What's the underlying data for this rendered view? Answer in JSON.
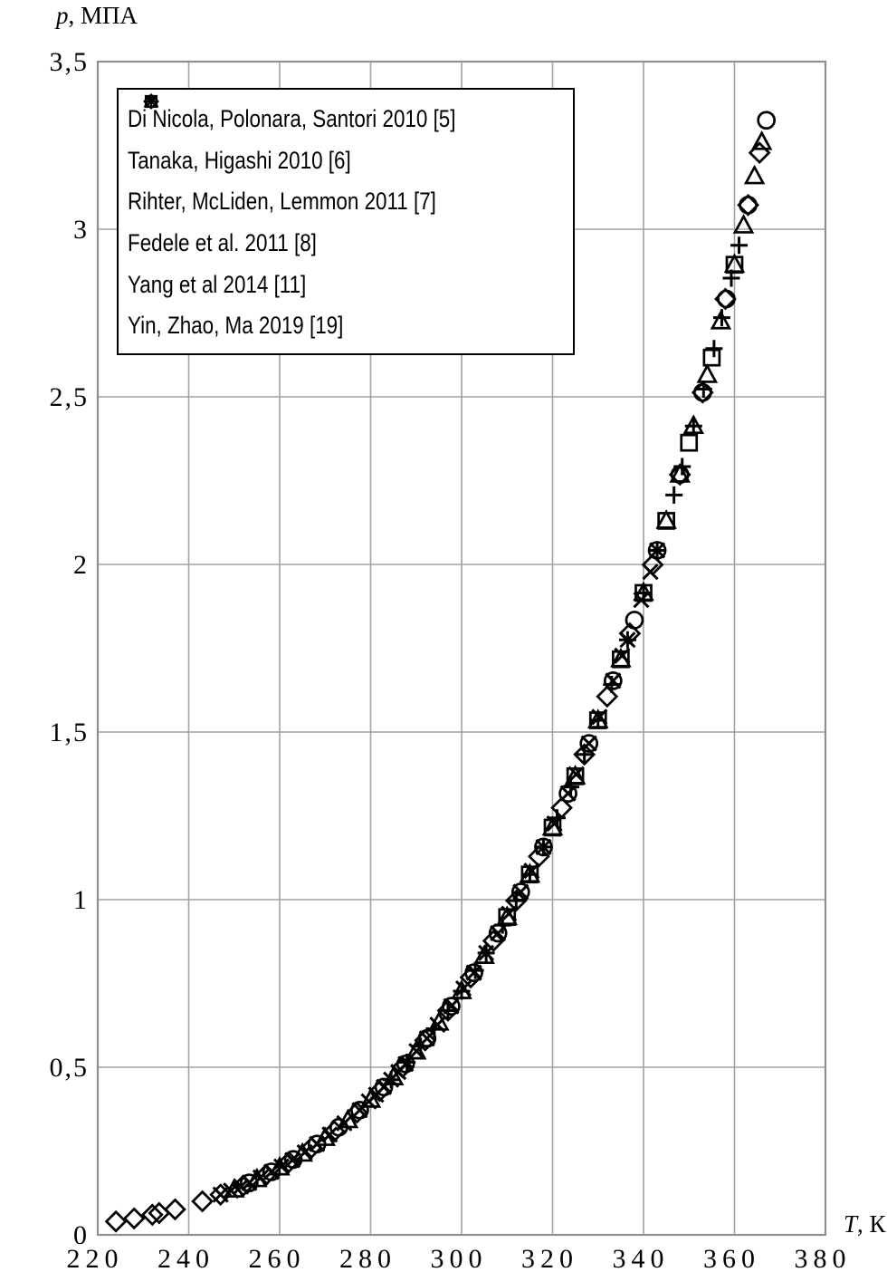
{
  "colors": {
    "marker": "#000000",
    "grid": "#a2a2a2",
    "frame": "#8f8f8f",
    "background": "#ffffff",
    "legend_border": "#000000"
  },
  "chart_data": {
    "type": "scatter",
    "title": "",
    "ylabel_var": "p",
    "ylabel_unit": ", МПА",
    "xlabel_var": "T",
    "xlabel_unit": ", К",
    "xlim": [
      220,
      380
    ],
    "ylim": [
      0,
      3.5
    ],
    "grid": true,
    "legend_position": "top-left",
    "x_ticks": {
      "values": [
        220,
        240,
        260,
        280,
        300,
        320,
        340,
        360,
        380
      ],
      "labels": [
        "220",
        "240",
        "260",
        "280",
        "300",
        "320",
        "340",
        "360",
        "380"
      ]
    },
    "y_ticks": {
      "values": [
        0,
        0.5,
        1,
        1.5,
        2,
        2.5,
        3,
        3.5
      ],
      "labels": [
        "0",
        "0,5",
        "1",
        "1,5",
        "2",
        "2,5",
        "3",
        "3,5"
      ]
    },
    "series": [
      {
        "id": "di-nicola",
        "label": "Di Nicola, Polonara, Santori 2010 [5]",
        "marker": "diamond",
        "T": [
          224,
          228,
          232,
          233.5,
          237,
          243,
          247,
          252,
          257,
          262,
          267,
          272,
          277,
          282,
          287,
          292,
          297,
          302,
          307,
          312,
          317,
          322,
          327,
          332,
          337,
          342,
          348,
          353,
          358,
          363,
          365.5
        ],
        "p": [
          0.04,
          0.049,
          0.06,
          0.065,
          0.076,
          0.1,
          0.12,
          0.147,
          0.179,
          0.217,
          0.26,
          0.309,
          0.365,
          0.429,
          0.5,
          0.58,
          0.669,
          0.768,
          0.877,
          0.997,
          1.129,
          1.274,
          1.433,
          1.606,
          1.794,
          1.999,
          2.268,
          2.513,
          2.792,
          3.072,
          3.228
        ]
      },
      {
        "id": "tanaka",
        "label": "Tanaka, Higashi 2010 [6]",
        "marker": "square",
        "T": [
          310,
          315,
          320,
          325,
          330,
          335,
          340,
          345,
          350,
          355,
          360
        ],
        "p": [
          0.948,
          1.075,
          1.215,
          1.368,
          1.535,
          1.717,
          1.915,
          2.13,
          2.363,
          2.617,
          2.894
        ]
      },
      {
        "id": "rihter",
        "label": "Rihter, McLiden, Lemmon 2011 [7]",
        "marker": "triangle",
        "T": [
          250,
          255,
          260,
          265,
          270,
          275,
          280,
          285,
          290,
          295,
          300,
          305,
          310,
          315,
          320,
          325,
          330,
          335,
          340,
          345,
          348,
          351,
          354,
          357,
          360,
          362,
          364.4,
          366
        ],
        "p": [
          0.135,
          0.166,
          0.201,
          0.242,
          0.289,
          0.342,
          0.403,
          0.47,
          0.547,
          0.633,
          0.727,
          0.832,
          0.948,
          1.075,
          1.215,
          1.368,
          1.535,
          1.717,
          1.915,
          2.13,
          2.268,
          2.413,
          2.565,
          2.725,
          2.894,
          3.011,
          3.158,
          3.26
        ]
      },
      {
        "id": "fedele",
        "label": "Fedele et al. 2011 [8]",
        "marker": "x",
        "T": [
          247,
          249.3,
          251.5,
          253.3,
          255.8,
          258.2,
          260.4,
          262.8,
          265.5,
          268.2,
          271,
          274.2,
          277.6,
          279.6,
          281.2,
          282.9,
          284.5,
          286.1,
          287.7,
          290.1,
          292.4,
          294.7,
          297.7,
          300.4,
          302.7,
          305.4,
          308,
          310.4,
          313,
          315.4,
          318,
          320.4,
          323.4,
          325.2,
          328,
          330.3,
          333.3,
          335.3,
          336.5,
          339.5,
          341.5,
          343
        ],
        "p": [
          0.12,
          0.132,
          0.144,
          0.155,
          0.171,
          0.188,
          0.204,
          0.223,
          0.246,
          0.271,
          0.299,
          0.333,
          0.372,
          0.398,
          0.418,
          0.441,
          0.463,
          0.486,
          0.51,
          0.548,
          0.586,
          0.627,
          0.682,
          0.735,
          0.782,
          0.841,
          0.9,
          0.958,
          1.023,
          1.086,
          1.157,
          1.227,
          1.317,
          1.374,
          1.466,
          1.545,
          1.653,
          1.728,
          1.775,
          1.894,
          1.978,
          2.042
        ]
      },
      {
        "id": "yang",
        "label": "Yang et al 2014 [11]",
        "marker": "plus",
        "T": [
          284.5,
          288,
          291,
          294,
          297,
          300,
          303,
          305.4,
          309,
          312,
          315,
          318,
          321,
          324,
          327,
          330,
          333,
          336.5,
          340,
          343,
          346.7,
          348.5,
          351,
          353.2,
          355.5,
          357.2,
          359.3,
          361
        ],
        "p": [
          0.463,
          0.515,
          0.563,
          0.615,
          0.669,
          0.727,
          0.789,
          0.841,
          0.924,
          0.997,
          1.075,
          1.157,
          1.244,
          1.336,
          1.433,
          1.535,
          1.642,
          1.775,
          1.915,
          2.042,
          2.207,
          2.292,
          2.413,
          2.523,
          2.644,
          2.736,
          2.854,
          2.952
        ]
      },
      {
        "id": "yin",
        "label": "Yin, Zhao, Ma 2019 [19]",
        "marker": "circle",
        "T": [
          253.3,
          258.2,
          263,
          268.2,
          273,
          277.6,
          282.9,
          287.7,
          292.4,
          297.7,
          302.7,
          308,
          313,
          318,
          323.4,
          328,
          333.3,
          338,
          343,
          348,
          353,
          358.2,
          363,
          367
        ],
        "p": [
          0.155,
          0.188,
          0.225,
          0.271,
          0.321,
          0.372,
          0.441,
          0.51,
          0.586,
          0.682,
          0.782,
          0.9,
          1.023,
          1.157,
          1.317,
          1.466,
          1.653,
          1.834,
          2.042,
          2.268,
          2.513,
          2.792,
          3.072,
          3.325
        ]
      }
    ]
  }
}
